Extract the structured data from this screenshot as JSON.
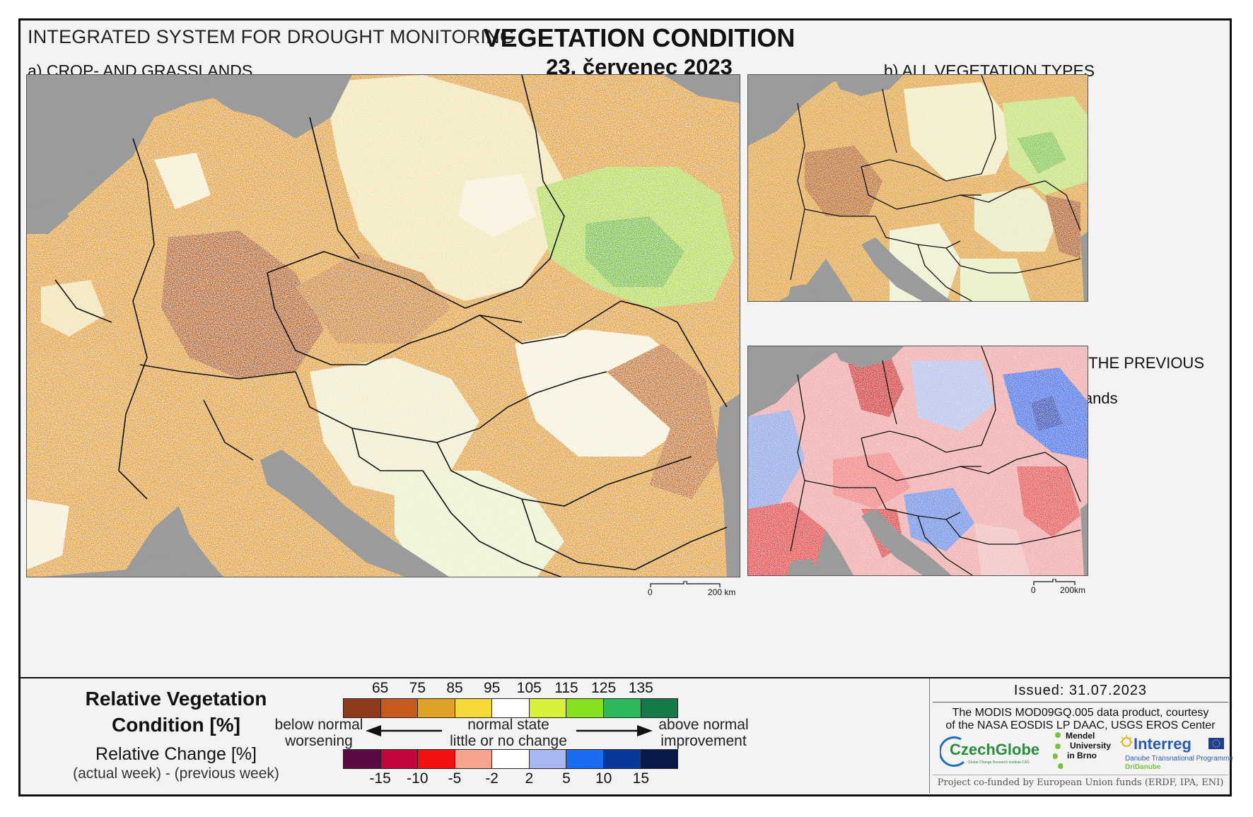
{
  "header": {
    "system_title": "INTEGRATED SYSTEM FOR DROUGHT MONITORING",
    "main_title": "VEGETATION CONDITION",
    "date": "23. červenec 2023"
  },
  "panels": {
    "a_label": "a) CROP- AND GRASSLANDS",
    "b_label": "b) ALL VEGETATION TYPES",
    "c_label_line1": "c) CHANGE COMPARED WITH THE PREVIOUS WEEK",
    "c_label_line2": "for crop- and grasslands"
  },
  "scalebars": {
    "main": {
      "start": "0",
      "end": "200 km"
    },
    "small": {
      "start": "0",
      "end": "200km"
    }
  },
  "legend": {
    "title_line1": "Relative Vegetation",
    "title_line2": "Condition [%]",
    "change_title": "Relative Change [%]",
    "change_sub": "(actual week) - (previous week)",
    "condition_ticks": [
      "65",
      "75",
      "85",
      "95",
      "105",
      "115",
      "125",
      "135"
    ],
    "condition_colors": [
      "#8f3b1b",
      "#c75a1f",
      "#e0a224",
      "#f6d93a",
      "#ffffff",
      "#d8f03a",
      "#87e01e",
      "#2db85a",
      "#137a48"
    ],
    "change_ticks": [
      "-15",
      "-10",
      "-5",
      "-2",
      "2",
      "5",
      "10",
      "15"
    ],
    "change_colors": [
      "#5c0a42",
      "#c0063a",
      "#f21010",
      "#f6a48e",
      "#ffffff",
      "#a7b7f0",
      "#1a6cf2",
      "#08389c",
      "#071a4a"
    ],
    "below_line1": "below normal",
    "below_line2": "worsening",
    "normal_line1": "normal state",
    "normal_line2": "little or no change",
    "above_line1": "above normal",
    "above_line2": "improvement"
  },
  "info": {
    "issued": "Issued: 31.07.2023",
    "credit_line1": "The MODIS MOD09GQ.005 data product, courtesy",
    "credit_line2": "of the NASA EOSDIS LP DAAC, USGS EROS Center",
    "logo_czechglobe": "CzechGlobe",
    "logo_czechglobe_sub": "Global Change Research Institute CAS",
    "logo_mendel_1": "Mendel",
    "logo_mendel_2": "University",
    "logo_mendel_3": "in Brno",
    "logo_interreg": "Interreg",
    "logo_interreg_sub": "Danube Transnational Programme",
    "logo_interreg_sub2": "DriDanube",
    "cofund": "Project co-funded by European Union funds (ERDF, IPA, ENI)"
  }
}
